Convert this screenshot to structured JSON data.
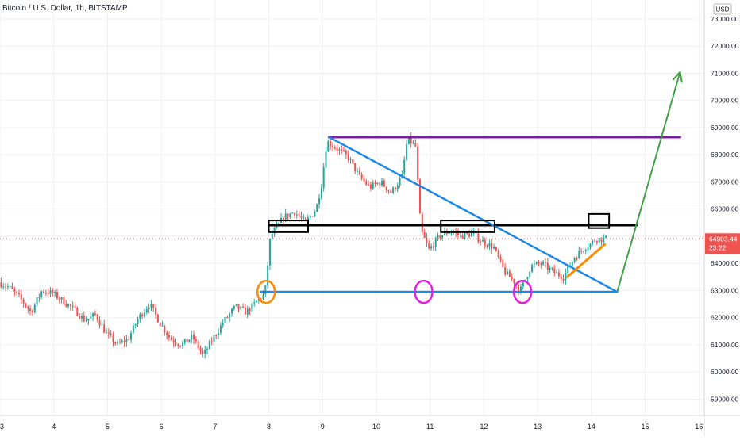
{
  "chart_data": {
    "type": "candlestick",
    "title": "Bitcoin / U.S. Dollar, 1h, BITSTAMP",
    "currency_label": "USD",
    "price_tag": {
      "value": "64903.44",
      "countdown": "23:22",
      "color": "#ef5350"
    },
    "ylim": [
      58400,
      73700
    ],
    "xlim": [
      3,
      16.1
    ],
    "y_ticks": [
      "73000.00",
      "72000.00",
      "71000.00",
      "70000.00",
      "69000.00",
      "68000.00",
      "67000.00",
      "66000.00",
      "65000.00",
      "64000.00",
      "63000.00",
      "62000.00",
      "61000.00",
      "60000.00",
      "59000.00"
    ],
    "x_ticks": [
      "3",
      "4",
      "5",
      "6",
      "7",
      "8",
      "9",
      "10",
      "11",
      "12",
      "13",
      "14",
      "15",
      "16"
    ],
    "grid": true,
    "colors": {
      "up": "#26a69a",
      "down": "#ef5350"
    },
    "last_price": 64903.44,
    "price_path": [
      [
        3.0,
        63300
      ],
      [
        3.2,
        63100
      ],
      [
        3.4,
        62700
      ],
      [
        3.6,
        62200
      ],
      [
        3.8,
        63000
      ],
      [
        4.0,
        62900
      ],
      [
        4.2,
        62600
      ],
      [
        4.4,
        62300
      ],
      [
        4.6,
        61900
      ],
      [
        4.8,
        62100
      ],
      [
        5.0,
        61400
      ],
      [
        5.2,
        61000
      ],
      [
        5.4,
        61200
      ],
      [
        5.6,
        62000
      ],
      [
        5.8,
        62500
      ],
      [
        6.0,
        61800
      ],
      [
        6.2,
        61200
      ],
      [
        6.4,
        61000
      ],
      [
        6.6,
        61300
      ],
      [
        6.8,
        60600
      ],
      [
        7.0,
        61300
      ],
      [
        7.2,
        61900
      ],
      [
        7.4,
        62400
      ],
      [
        7.6,
        62200
      ],
      [
        7.8,
        62600
      ],
      [
        7.95,
        62900
      ],
      [
        8.05,
        65000
      ],
      [
        8.3,
        65700
      ],
      [
        8.5,
        65900
      ],
      [
        8.7,
        65500
      ],
      [
        8.9,
        66000
      ],
      [
        9.0,
        66900
      ],
      [
        9.1,
        68500
      ],
      [
        9.3,
        68200
      ],
      [
        9.5,
        67900
      ],
      [
        9.7,
        67200
      ],
      [
        9.9,
        66800
      ],
      [
        10.1,
        67000
      ],
      [
        10.3,
        66600
      ],
      [
        10.5,
        67200
      ],
      [
        10.6,
        68600
      ],
      [
        10.75,
        68300
      ],
      [
        10.85,
        65200
      ],
      [
        11.0,
        64500
      ],
      [
        11.2,
        65000
      ],
      [
        11.4,
        65200
      ],
      [
        11.6,
        65000
      ],
      [
        11.8,
        65100
      ],
      [
        12.0,
        64800
      ],
      [
        12.2,
        64600
      ],
      [
        12.4,
        63700
      ],
      [
        12.6,
        63300
      ],
      [
        12.7,
        63000
      ],
      [
        12.9,
        63900
      ],
      [
        13.1,
        64000
      ],
      [
        13.3,
        63700
      ],
      [
        13.5,
        63500
      ],
      [
        13.7,
        64200
      ],
      [
        13.9,
        64600
      ],
      [
        14.0,
        64700
      ],
      [
        14.1,
        64900
      ],
      [
        14.25,
        64903
      ]
    ],
    "annotations": {
      "resistance_top": {
        "x1": 9.12,
        "x2": 15.65,
        "y": 68650,
        "color": "#7b1fa2"
      },
      "mid_level": {
        "x1": 8.0,
        "x2": 14.85,
        "y": 65400,
        "color": "#000000"
      },
      "support": {
        "x1": 7.85,
        "x2": 14.48,
        "y": 62950,
        "color": "#1e88e5"
      },
      "descending_trendline": {
        "x1": 9.12,
        "y1": 68650,
        "x2": 14.48,
        "y2": 62950,
        "color": "#1e88e5"
      },
      "projection_arrow": {
        "x1": 14.48,
        "y1": 62950,
        "x2": 15.65,
        "y2": 71050,
        "color": "#43a047"
      },
      "rising_segment": {
        "x1": 13.55,
        "y1": 63500,
        "x2": 14.25,
        "y2": 64700,
        "color": "#fb8c00"
      },
      "boxes": [
        {
          "x1": 8.0,
          "x2": 8.73,
          "y1": 65150,
          "y2": 65580
        },
        {
          "x1": 11.2,
          "x2": 12.2,
          "y1": 65150,
          "y2": 65580
        },
        {
          "x1": 13.95,
          "x2": 14.33,
          "y1": 65300,
          "y2": 65820
        }
      ],
      "circles": [
        {
          "x": 7.95,
          "y": 62950,
          "color": "#fb8c00"
        },
        {
          "x": 10.88,
          "y": 62950,
          "color": "#e91ee0"
        },
        {
          "x": 12.72,
          "y": 62950,
          "color": "#e91ee0"
        }
      ]
    }
  }
}
